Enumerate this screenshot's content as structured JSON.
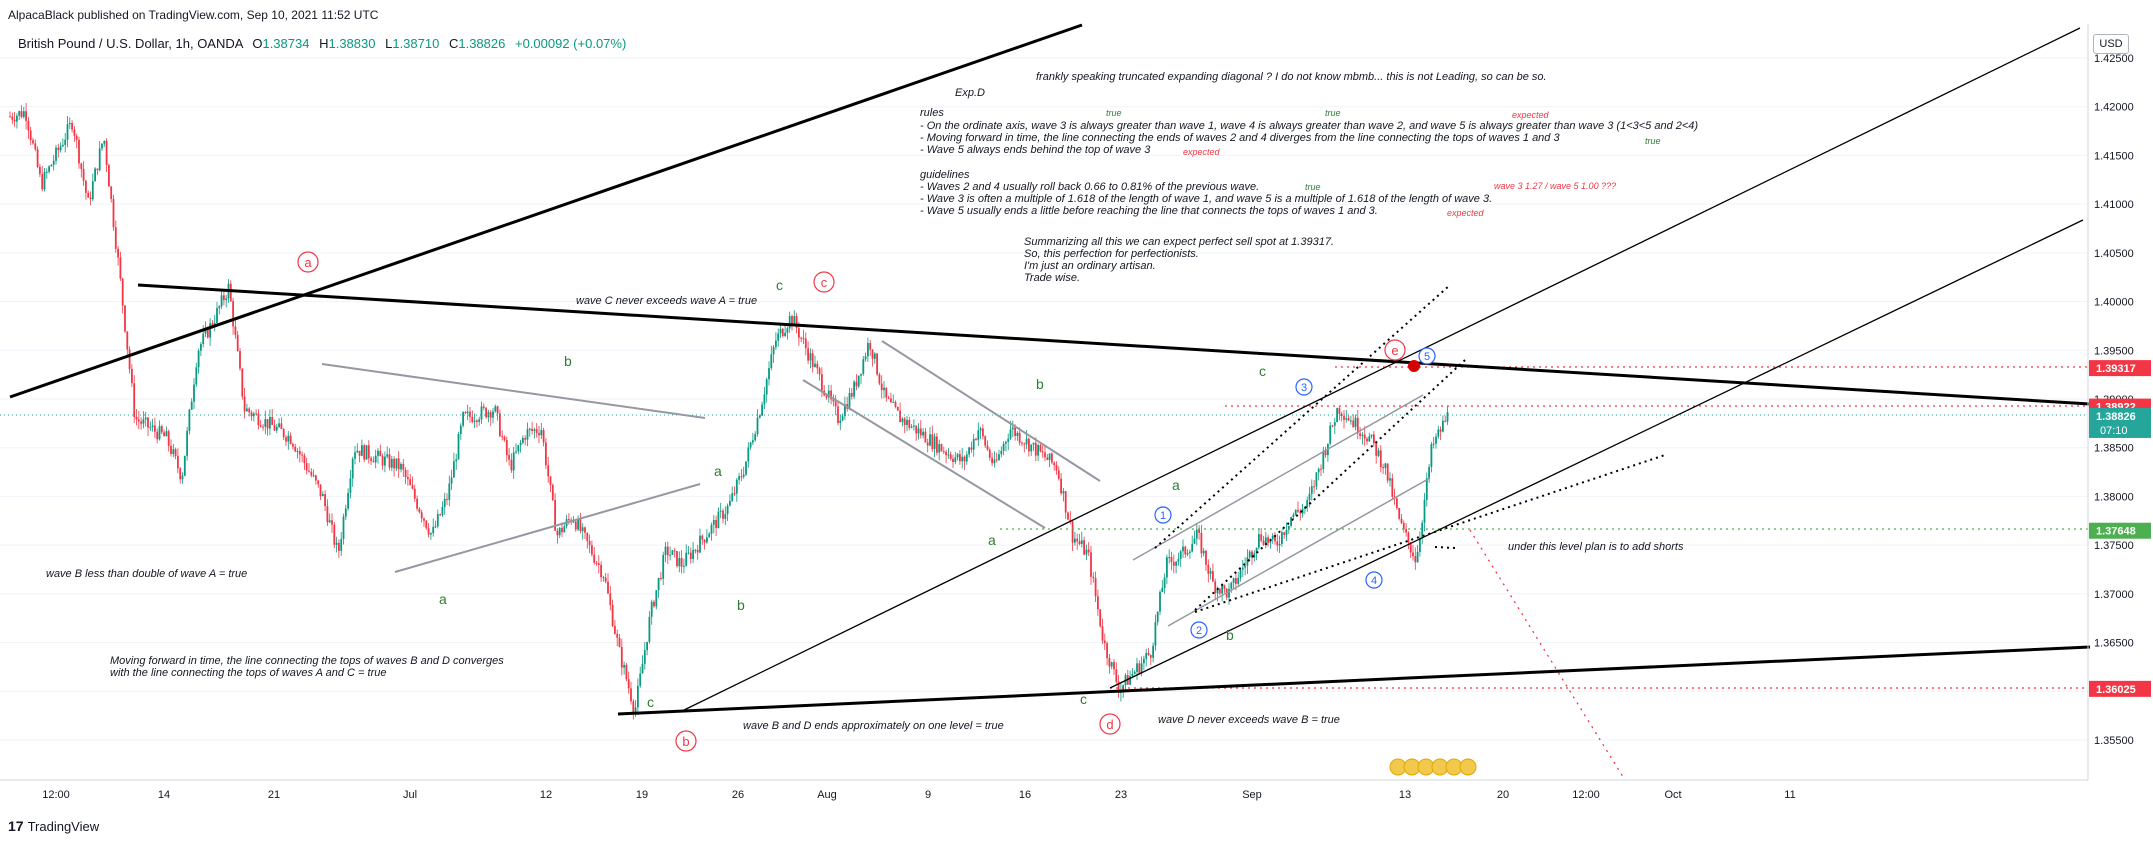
{
  "header": {
    "publisher": "AlpacaBlack published on TradingView.com, Sep 10, 2021 11:52 UTC",
    "symbol": "British Pound / U.S. Dollar, 1h, OANDA",
    "open_label": "O",
    "open": "1.38734",
    "high_label": "H",
    "high": "1.38830",
    "low_label": "L",
    "low": "1.38710",
    "close_label": "C",
    "close": "1.38826",
    "change": "+0.00092 (+0.07%)",
    "currency": "USD"
  },
  "footer": {
    "logo": "17",
    "brand": "TradingView"
  },
  "colors": {
    "up": "#089981",
    "down": "#f23645",
    "grid": "#f0f3fa",
    "price_tag": "#26a69a",
    "red_tag": "#f23645",
    "green_tag": "#4caf50"
  },
  "price_axis": {
    "ticks": [
      "1.42500",
      "1.42000",
      "1.41500",
      "1.41000",
      "1.40500",
      "1.40000",
      "1.39500",
      "1.39000",
      "1.38500",
      "1.38000",
      "1.37500",
      "1.37000",
      "1.36500",
      "1.36000",
      "1.35500"
    ],
    "tags": [
      {
        "label": "1.39317",
        "price": 1.39317,
        "color": "red"
      },
      {
        "label": "1.38922",
        "price": 1.38922,
        "color": "red"
      },
      {
        "label": "1.38826",
        "price": 1.38826,
        "color": "teal",
        "sub": "07:10"
      },
      {
        "label": "1.37648",
        "price": 1.37648,
        "color": "green"
      },
      {
        "label": "1.36025",
        "price": 1.36025,
        "color": "red"
      }
    ]
  },
  "time_axis": {
    "labels": [
      "12:00",
      "14",
      "21",
      "Jul",
      "12",
      "19",
      "26",
      "Aug",
      "9",
      "16",
      "23",
      "Sep",
      "13",
      "20",
      "12:00",
      "Oct",
      "11"
    ]
  },
  "annotations": {
    "top_note": "frankly speaking truncated expanding diagonal ? I do not know mbmb... this is not Leading, so can be so.",
    "exp": "Exp.D",
    "rules_title": "rules",
    "rule1": "- On the ordinate axis, wave 3 is always greater than wave 1, wave 4 is always greater than wave 2, and wave 5 is always greater than wave 3 (1<3<5 and 2<4)",
    "rule2": "- Moving forward in time, the line connecting the ends of waves 2 and 4 diverges from the line connecting the tops of waves 1 and 3",
    "rule3": "- Wave 5 always ends behind the top of wave 3",
    "guidelines_title": "guidelines",
    "guide1": "- Waves 2 and 4 usually roll back 0.66 to 0.81% of the previous wave.",
    "guide2": "- Wave 3 is often a multiple of 1.618 of the length of wave 1, and wave 5 is a multiple of 1.618 of the length of wave 3.",
    "guide3": "- Wave 5 usually ends a little before reaching the line that connects the tops of waves 1 and 3.",
    "true_word": "true",
    "expected_word": "expected",
    "wave_ratio": "wave 3 1.27 / wave 5 1.00 ???",
    "summary1": "Summarizing all this we can expect perfect sell spot at 1.39317.",
    "summary2": "So, this perfection for perfectionists.",
    "summary3": "I'm just an ordinary artisan.",
    "summary4": "Trade wise.",
    "waveC": "wave C never exceeds wave A = true",
    "waveB": "wave B less than double of wave  A = true",
    "moving1": "Moving forward in time, the line connecting the tops of waves B and D converges",
    "moving2": "with the line connecting the tops of waves A and C = true",
    "bd_level": "wave B and D ends approximately on one level = true",
    "waveD": "wave D never exceeds wave B = true",
    "shorts": "under this level plan is to add shorts"
  },
  "wave_labels": {
    "red": [
      "a",
      "b",
      "c",
      "d",
      "e"
    ],
    "blue": [
      "1",
      "2",
      "3",
      "4",
      "5"
    ],
    "green_a": "a",
    "green_b": "b",
    "green_c": "c"
  },
  "chart_data": {
    "type": "candlestick",
    "title": "British Pound / U.S. Dollar, 1h, OANDA",
    "ylim": [
      1.3515,
      1.4275
    ],
    "x_range": [
      "2021-06-10",
      "2021-10-16"
    ],
    "grid": true,
    "last_price": 1.38826,
    "path": [
      [
        "2021-06-10",
        1.419
      ],
      [
        "2021-06-11",
        1.4195
      ],
      [
        "2021-06-12",
        1.412
      ],
      [
        "2021-06-14",
        1.4185
      ],
      [
        "2021-06-15",
        1.41
      ],
      [
        "2021-06-16",
        1.417
      ],
      [
        "2021-06-17",
        1.403
      ],
      [
        "2021-06-18",
        1.388
      ],
      [
        "2021-06-20",
        1.386
      ],
      [
        "2021-06-21",
        1.382
      ],
      [
        "2021-06-22",
        1.395
      ],
      [
        "2021-06-23",
        1.398
      ],
      [
        "2021-06-24",
        1.4015
      ],
      [
        "2021-06-25",
        1.389
      ],
      [
        "2021-06-28",
        1.386
      ],
      [
        "2021-06-30",
        1.38
      ],
      [
        "2021-07-01",
        1.374
      ],
      [
        "2021-07-02",
        1.385
      ],
      [
        "2021-07-05",
        1.383
      ],
      [
        "2021-07-07",
        1.376
      ],
      [
        "2021-07-08",
        1.38
      ],
      [
        "2021-07-09",
        1.388
      ],
      [
        "2021-07-11",
        1.389
      ],
      [
        "2021-07-12",
        1.383
      ],
      [
        "2021-07-13",
        1.3865
      ],
      [
        "2021-07-14",
        1.387
      ],
      [
        "2021-07-15",
        1.376
      ],
      [
        "2021-07-16",
        1.378
      ],
      [
        "2021-07-18",
        1.372
      ],
      [
        "2021-07-19",
        1.364
      ],
      [
        "2021-07-20",
        1.358
      ],
      [
        "2021-07-21",
        1.368
      ],
      [
        "2021-07-22",
        1.3745
      ],
      [
        "2021-07-23",
        1.373
      ],
      [
        "2021-07-26",
        1.379
      ],
      [
        "2021-07-27",
        1.383
      ],
      [
        "2021-07-28",
        1.389
      ],
      [
        "2021-07-29",
        1.396
      ],
      [
        "2021-07-30",
        1.3985
      ],
      [
        "2021-08-02",
        1.388
      ],
      [
        "2021-08-03",
        1.391
      ],
      [
        "2021-08-04",
        1.396
      ],
      [
        "2021-08-05",
        1.39
      ],
      [
        "2021-08-06",
        1.388
      ],
      [
        "2021-08-09",
        1.3845
      ],
      [
        "2021-08-10",
        1.3835
      ],
      [
        "2021-08-11",
        1.387
      ],
      [
        "2021-08-12",
        1.383
      ],
      [
        "2021-08-13",
        1.387
      ],
      [
        "2021-08-16",
        1.383
      ],
      [
        "2021-08-17",
        1.376
      ],
      [
        "2021-08-18",
        1.374
      ],
      [
        "2021-08-19",
        1.365
      ],
      [
        "2021-08-20",
        1.3602
      ],
      [
        "2021-08-22",
        1.364
      ],
      [
        "2021-08-23",
        1.373
      ],
      [
        "2021-08-24",
        1.374
      ],
      [
        "2021-08-25",
        1.376
      ],
      [
        "2021-08-26",
        1.371
      ],
      [
        "2021-08-27",
        1.37
      ],
      [
        "2021-08-29",
        1.376
      ],
      [
        "2021-08-30",
        1.375
      ],
      [
        "2021-08-31",
        1.378
      ],
      [
        "2021-09-01",
        1.379
      ],
      [
        "2021-09-02",
        1.384
      ],
      [
        "2021-09-03",
        1.3892
      ],
      [
        "2021-09-05",
        1.386
      ],
      [
        "2021-09-06",
        1.383
      ],
      [
        "2021-09-07",
        1.377
      ],
      [
        "2021-09-08",
        1.3735
      ],
      [
        "2021-09-09",
        1.385
      ],
      [
        "2021-09-10",
        1.38826
      ]
    ],
    "price_levels": [
      1.39317,
      1.38922,
      1.38826,
      1.37648,
      1.36025
    ]
  }
}
